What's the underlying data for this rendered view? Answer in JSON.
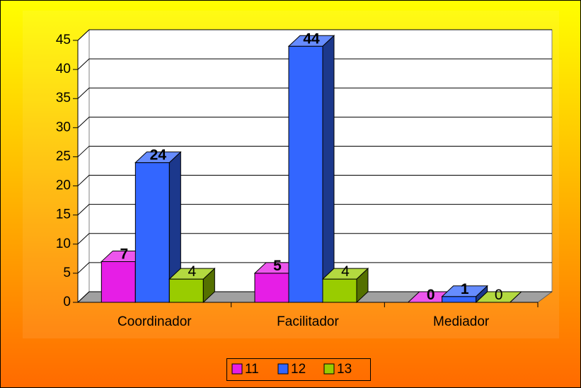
{
  "chart_data": {
    "type": "bar3d",
    "categories": [
      "Coordinador",
      "Facilitador",
      "Mediador"
    ],
    "series": [
      {
        "name": "11",
        "color": "#e61ee6",
        "values": [
          7,
          5,
          0
        ]
      },
      {
        "name": "12",
        "color": "#3366ff",
        "values": [
          24,
          44,
          1
        ]
      },
      {
        "name": "13",
        "color": "#99cc00",
        "values": [
          4,
          4,
          0
        ]
      }
    ],
    "ylim": [
      0,
      45
    ],
    "yticks": [
      0,
      5,
      10,
      15,
      20,
      25,
      30,
      35,
      40,
      45
    ],
    "grid": true,
    "legend": "bottom"
  }
}
